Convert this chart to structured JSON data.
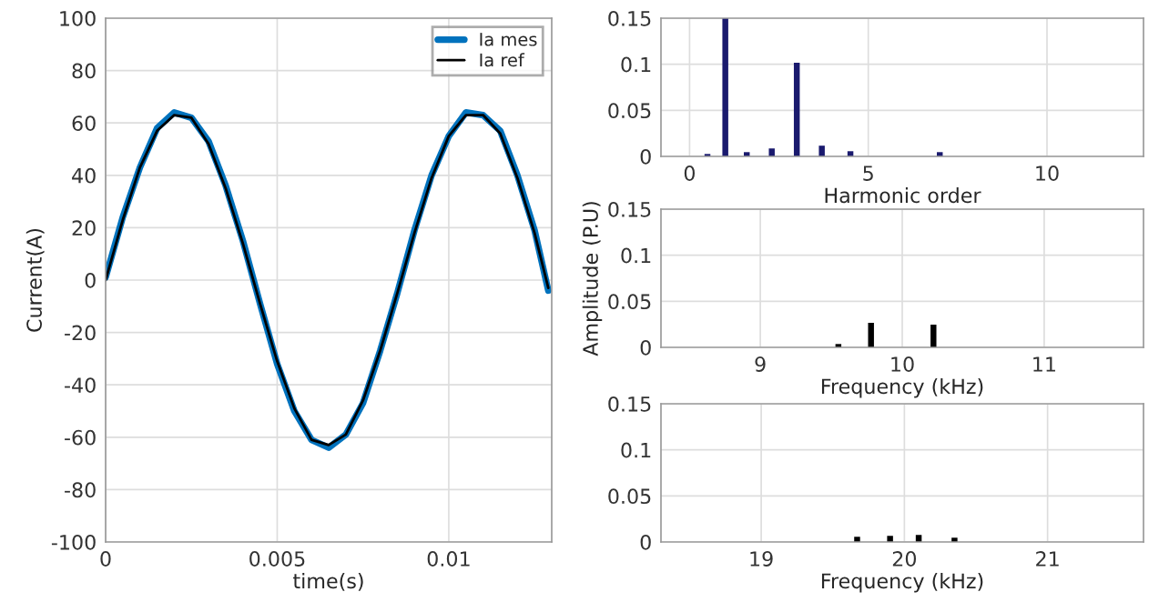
{
  "chart_data": [
    {
      "type": "line",
      "xlabel": "time(s)",
      "ylabel": "Current(A)",
      "xlim": [
        0,
        0.013
      ],
      "ylim": [
        -100,
        100
      ],
      "xticks": [
        0,
        0.005,
        0.01
      ],
      "yticks": [
        -100,
        -80,
        -60,
        -40,
        -20,
        0,
        20,
        40,
        60,
        80,
        100
      ],
      "grid": true,
      "legend": "top right",
      "series": [
        {
          "name": "Ia mes",
          "color": "#0072bd",
          "x": [
            0,
            0.0005,
            0.001,
            0.0015,
            0.002,
            0.0025,
            0.003,
            0.0035,
            0.004,
            0.0045,
            0.005,
            0.0055,
            0.006,
            0.0065,
            0.007,
            0.0075,
            0.008,
            0.0085,
            0.009,
            0.0095,
            0.01,
            0.0105,
            0.011,
            0.0115,
            0.012,
            0.0125,
            0.0129
          ],
          "values": [
            1,
            24,
            43,
            58,
            64,
            62,
            53,
            36,
            15,
            -9,
            -32,
            -50,
            -61,
            -64,
            -59,
            -47,
            -27,
            -5,
            19,
            40,
            55,
            64,
            63,
            57,
            40,
            19,
            -4
          ]
        },
        {
          "name": "Ia ref",
          "color": "#000000",
          "x": [
            0,
            0.0005,
            0.001,
            0.0015,
            0.002,
            0.0025,
            0.003,
            0.0035,
            0.004,
            0.0045,
            0.005,
            0.0055,
            0.006,
            0.0065,
            0.007,
            0.0075,
            0.008,
            0.0085,
            0.009,
            0.0095,
            0.01,
            0.0105,
            0.011,
            0.0115,
            0.012,
            0.0125,
            0.0129
          ],
          "values": [
            0,
            23,
            43,
            57,
            63,
            62,
            52,
            35,
            14,
            -9,
            -31,
            -49,
            -61,
            -63,
            -59,
            -46,
            -27,
            -5,
            18,
            39,
            55,
            63,
            63,
            56,
            39,
            18,
            -3
          ]
        }
      ]
    },
    {
      "type": "bar",
      "xlabel": "Harmonic order",
      "xlim": [
        -0.8,
        12.7
      ],
      "ylim": [
        0,
        0.15
      ],
      "xticks": [
        0,
        5,
        10
      ],
      "yticks": [
        0,
        0.05,
        0.1,
        0.15
      ],
      "grid": true,
      "series": [
        {
          "color": "#1a1a6e",
          "x": [
            0.5,
            1,
            1.6,
            2.3,
            3,
            3.7,
            4.5,
            7
          ],
          "values": [
            0.001,
            0.15,
            0.003,
            0.007,
            0.1,
            0.01,
            0.004,
            0.003
          ]
        }
      ]
    },
    {
      "type": "bar",
      "xlabel": "Frequency (kHz)",
      "ylabel": "Amplitude (P.U)",
      "xlim": [
        8.3,
        11.7
      ],
      "ylim": [
        0,
        0.15
      ],
      "xticks": [
        9,
        10,
        11
      ],
      "yticks": [
        0,
        0.05,
        0.1,
        0.15
      ],
      "grid": true,
      "series": [
        {
          "color": "#000000",
          "x": [
            9.55,
            9.78,
            10.22
          ],
          "values": [
            0.002,
            0.025,
            0.023
          ]
        }
      ]
    },
    {
      "type": "bar",
      "xlabel": "Frequency (kHz)",
      "xlim": [
        18.3,
        21.67
      ],
      "ylim": [
        0,
        0.15
      ],
      "xticks": [
        19,
        20,
        21
      ],
      "yticks": [
        0,
        0.05,
        0.1,
        0.15
      ],
      "grid": true,
      "series": [
        {
          "color": "#000000",
          "x": [
            19.67,
            19.9,
            20.1,
            20.35
          ],
          "values": [
            0.004,
            0.005,
            0.006,
            0.003
          ]
        }
      ]
    }
  ]
}
